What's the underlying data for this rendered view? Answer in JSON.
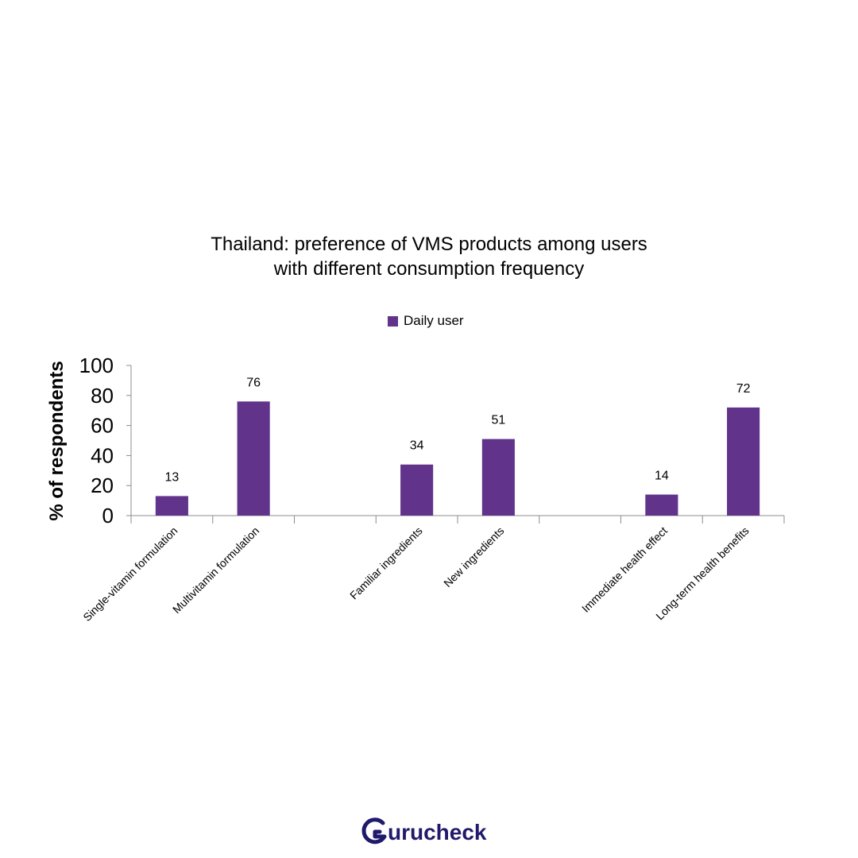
{
  "chart_data": {
    "type": "bar",
    "title_lines": [
      "Thailand: preference of VMS products among users",
      "with different consumption frequency"
    ],
    "ylabel": "% of respondents",
    "xlabel": "",
    "ylim": [
      0,
      100
    ],
    "yticks": [
      0,
      20,
      40,
      60,
      80,
      100
    ],
    "grid": false,
    "legend_position": "top-center",
    "slots": [
      "Single-vitamin formulation",
      "Multivitamin formulation",
      "",
      "Familiar ingredients",
      "New ingredients",
      "",
      "Immediate health effect",
      "Long-term health benefits"
    ],
    "categories": [
      "Single-vitamin formulation",
      "Multivitamin formulation",
      "Familiar ingredients",
      "New ingredients",
      "Immediate health effect",
      "Long-term health benefits"
    ],
    "series": [
      {
        "name": "Daily user",
        "color": "#61338a",
        "values": [
          13,
          76,
          34,
          51,
          14,
          72
        ]
      }
    ]
  },
  "brand": {
    "name": "Gurucheck",
    "color": "#1f1a6b"
  }
}
